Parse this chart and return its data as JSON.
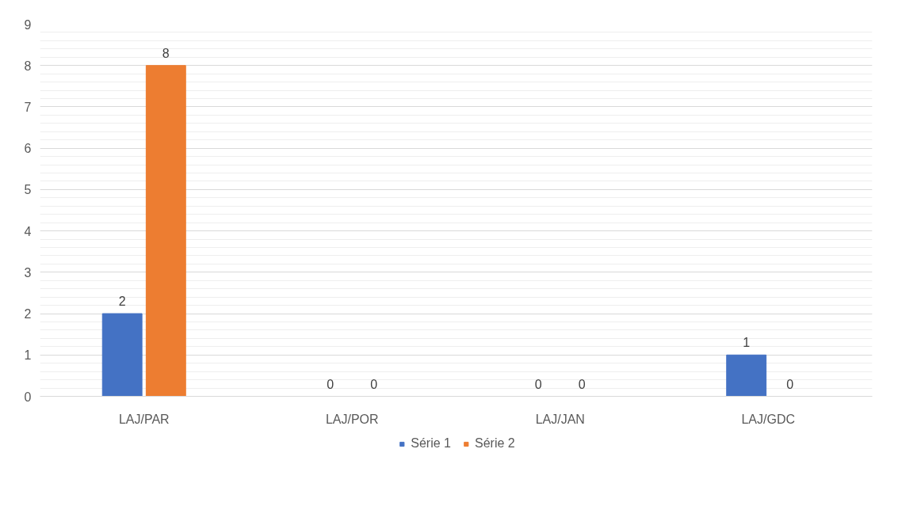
{
  "chart_data": {
    "type": "bar",
    "categories": [
      "LAJ/PAR",
      "LAJ/POR",
      "LAJ/JAN",
      "LAJ/GDC"
    ],
    "series": [
      {
        "name": "Série 1",
        "color": "#4472c4",
        "values": [
          2,
          0,
          0,
          1
        ]
      },
      {
        "name": "Série 2",
        "color": "#ed7d31",
        "values": [
          8,
          0,
          0,
          0
        ]
      }
    ],
    "ylim": [
      0,
      9
    ],
    "yticks": [
      0,
      1,
      2,
      3,
      4,
      5,
      6,
      7,
      8,
      9
    ],
    "grid": "y",
    "legend": "bottom",
    "data_labels": true
  }
}
